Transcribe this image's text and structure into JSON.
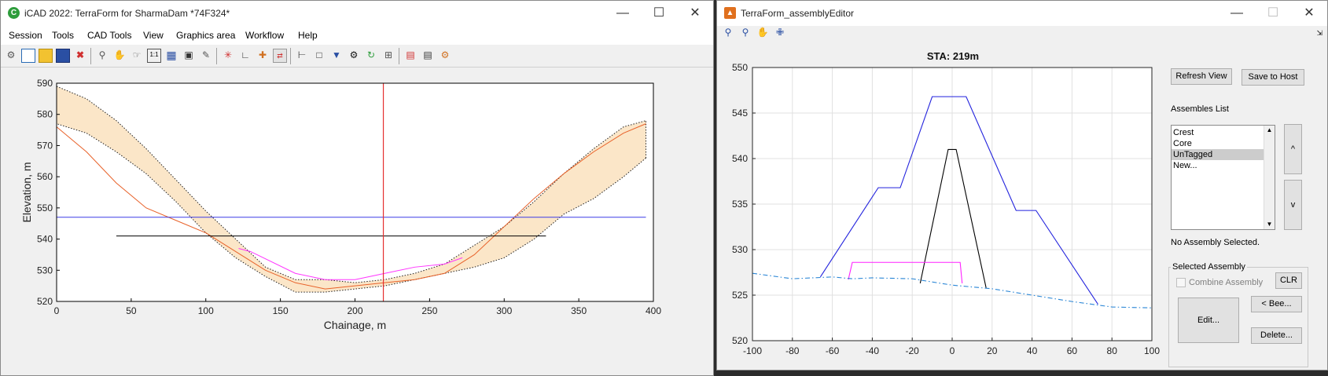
{
  "left_window": {
    "title": "iCAD 2022: TerraForm for SharmaDam *74F324*",
    "menu": [
      "Session",
      "Tools",
      "CAD Tools",
      "View",
      "Graphics area",
      "Workflow",
      "Help"
    ],
    "toolbar_icons": [
      "settings-icon",
      "new-document-icon",
      "open-file-icon",
      "save-icon",
      "close-file-icon",
      "zoom-icon",
      "pan-icon",
      "pan-select-icon",
      "one-to-one-icon",
      "grid-icon",
      "fit-view-icon",
      "edit-icon",
      "profile-point-icon",
      "axes-icon",
      "add-layer-icon",
      "import-icon",
      "measure-icon",
      "section-icon",
      "filter-icon",
      "gear-icon",
      "path-icon",
      "chart-settings-icon",
      "stack-icon",
      "document-icon",
      "export-icon"
    ]
  },
  "left_chart_data": {
    "type": "line",
    "xlabel": "Chainage, m",
    "ylabel": "Elevation, m",
    "xlim": [
      0,
      400
    ],
    "ylim": [
      520,
      590
    ],
    "xticks": [
      0,
      50,
      100,
      150,
      200,
      250,
      300,
      350,
      400
    ],
    "yticks": [
      520,
      530,
      540,
      550,
      560,
      570,
      580,
      590
    ],
    "grid": false,
    "band_upper": [
      [
        0,
        589
      ],
      [
        20,
        585
      ],
      [
        40,
        578
      ],
      [
        60,
        569
      ],
      [
        80,
        559
      ],
      [
        100,
        549
      ],
      [
        120,
        540
      ],
      [
        140,
        531
      ],
      [
        160,
        527
      ],
      [
        180,
        527
      ],
      [
        200,
        526
      ],
      [
        220,
        527
      ],
      [
        240,
        529
      ],
      [
        260,
        532
      ],
      [
        280,
        538
      ],
      [
        300,
        544
      ],
      [
        320,
        552
      ],
      [
        340,
        561
      ],
      [
        360,
        569
      ],
      [
        380,
        576
      ],
      [
        395,
        578
      ],
      [
        395,
        566
      ]
    ],
    "band_lower": [
      [
        395,
        566
      ],
      [
        380,
        560
      ],
      [
        360,
        553
      ],
      [
        340,
        548
      ],
      [
        320,
        540
      ],
      [
        300,
        534
      ],
      [
        280,
        531
      ],
      [
        260,
        529
      ],
      [
        240,
        527
      ],
      [
        220,
        525
      ],
      [
        200,
        524
      ],
      [
        180,
        523
      ],
      [
        160,
        523
      ],
      [
        140,
        528
      ],
      [
        120,
        534
      ],
      [
        100,
        542
      ],
      [
        80,
        552
      ],
      [
        60,
        561
      ],
      [
        40,
        568
      ],
      [
        20,
        574
      ],
      [
        0,
        577
      ]
    ],
    "series": [
      {
        "values": [
          [
            0,
            576
          ],
          [
            20,
            568
          ],
          [
            40,
            558
          ],
          [
            60,
            550
          ],
          [
            80,
            546
          ],
          [
            100,
            542
          ],
          [
            120,
            536
          ],
          [
            140,
            530
          ],
          [
            160,
            526
          ],
          [
            180,
            524
          ],
          [
            200,
            525
          ],
          [
            220,
            526
          ],
          [
            240,
            527
          ],
          [
            260,
            529
          ],
          [
            280,
            535
          ],
          [
            300,
            544
          ],
          [
            320,
            553
          ],
          [
            340,
            561
          ],
          [
            360,
            568
          ],
          [
            380,
            574
          ],
          [
            395,
            577
          ]
        ],
        "color": "#e8622a"
      },
      {
        "values": [
          [
            122,
            537
          ],
          [
            130,
            536
          ],
          [
            160,
            529
          ],
          [
            180,
            527
          ],
          [
            200,
            527
          ],
          [
            220,
            529
          ],
          [
            240,
            531
          ],
          [
            260,
            532
          ],
          [
            272,
            534
          ]
        ],
        "color": "#ff33ff"
      },
      {
        "values": [
          [
            0,
            547
          ],
          [
            395,
            547
          ]
        ],
        "color": "#3a3ae6"
      },
      {
        "values": [
          [
            40,
            541
          ],
          [
            328,
            541
          ]
        ],
        "color": "#000000"
      }
    ],
    "marker_x": 219,
    "marker_color": "#e53030"
  },
  "right_window": {
    "title": "TerraForm_assemblyEditor",
    "toolbar_icons": [
      "zoom-in-icon",
      "zoom-out-icon",
      "pan-hand-icon",
      "data-cursor-icon"
    ]
  },
  "right_chart_data": {
    "type": "line",
    "title": "STA: 219m",
    "xlim": [
      -100,
      100
    ],
    "ylim": [
      520,
      550
    ],
    "xticks": [
      -100,
      -80,
      -60,
      -40,
      -20,
      0,
      20,
      40,
      60,
      80,
      100
    ],
    "yticks": [
      520,
      525,
      530,
      535,
      540,
      545,
      550
    ],
    "grid": true,
    "series": [
      {
        "values": [
          [
            -66,
            527
          ],
          [
            -37,
            536.8
          ],
          [
            -26,
            536.8
          ],
          [
            -10,
            546.8
          ],
          [
            7,
            546.8
          ],
          [
            32,
            534.3
          ],
          [
            42,
            534.3
          ],
          [
            73,
            524
          ]
        ],
        "color": "#2222dd"
      },
      {
        "values": [
          [
            -16,
            526.3
          ],
          [
            -2,
            541
          ],
          [
            2,
            541
          ],
          [
            17,
            525.8
          ]
        ],
        "color": "#000000"
      },
      {
        "values": [
          [
            -52,
            526.7
          ],
          [
            -50,
            528.6
          ],
          [
            4,
            528.6
          ],
          [
            5,
            526.3
          ]
        ],
        "color": "#ff22ff"
      },
      {
        "values": [
          [
            -100,
            527.4
          ],
          [
            -90,
            527.1
          ],
          [
            -80,
            526.8
          ],
          [
            -60,
            527
          ],
          [
            -50,
            526.8
          ],
          [
            -40,
            526.9
          ],
          [
            -20,
            526.8
          ],
          [
            0,
            526.1
          ],
          [
            20,
            525.7
          ],
          [
            40,
            525
          ],
          [
            60,
            524.3
          ],
          [
            80,
            523.7
          ],
          [
            100,
            523.6
          ]
        ],
        "color": "#2a86d6"
      }
    ]
  },
  "panel": {
    "refresh_label": "Refresh View",
    "save_label": "Save to Host",
    "assemblies_label": "Assembles List",
    "assemblies": [
      "Crest",
      "Core",
      "UnTagged",
      "New..."
    ],
    "selected_assembly": "UnTagged",
    "up_label": "^",
    "down_label": "v",
    "status": "No Assembly Selected.",
    "selected_group_label": "Selected Assembly",
    "combine_label": "Combine Assembly",
    "clr_label": "CLR",
    "bee_label": "< Bee...",
    "edit_label": "Edit...",
    "delete_label": "Delete..."
  }
}
